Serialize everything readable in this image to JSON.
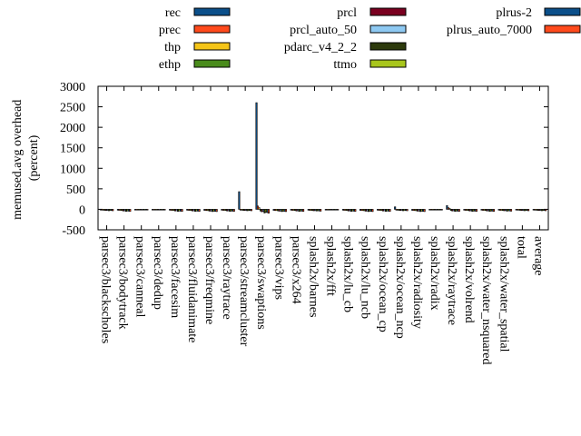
{
  "chart_data": {
    "type": "bar",
    "ylabel": "memused.avg overhead\n(percent)",
    "ylim": [
      -500,
      3000
    ],
    "yticks": [
      -500,
      0,
      500,
      1000,
      1500,
      2000,
      2500,
      3000
    ],
    "grid": false,
    "legend_position": "top",
    "categories": [
      "parsec3/blackscholes",
      "parsec3/bodytrack",
      "parsec3/canneal",
      "parsec3/dedup",
      "parsec3/facesim",
      "parsec3/fluidanimate",
      "parsec3/freqmine",
      "parsec3/raytrace",
      "parsec3/streamcluster",
      "parsec3/swaptions",
      "parsec3/vips",
      "parsec3/x264",
      "splash2x/barnes",
      "splash2x/fft",
      "splash2x/lu_cb",
      "splash2x/lu_ncb",
      "splash2x/ocean_cp",
      "splash2x/ocean_ncp",
      "splash2x/radiosity",
      "splash2x/radix",
      "splash2x/raytrace",
      "splash2x/volrend",
      "splash2x/water_nsquared",
      "splash2x/water_spatial",
      "total",
      "average"
    ],
    "series": [
      {
        "name": "rec",
        "color": "#0b4f8a",
        "values": [
          -15,
          -20,
          -10,
          -10,
          -20,
          -20,
          -25,
          -20,
          430,
          2600,
          -25,
          -20,
          -20,
          -10,
          -20,
          -25,
          -20,
          60,
          -25,
          -10,
          90,
          -20,
          -20,
          -20,
          -15,
          -15
        ]
      },
      {
        "name": "prec",
        "color": "#ff4a1c",
        "values": [
          -20,
          -25,
          -10,
          -10,
          -25,
          -25,
          -30,
          -25,
          -20,
          80,
          -30,
          -25,
          -25,
          -10,
          -25,
          -30,
          -25,
          -20,
          -30,
          -10,
          40,
          -25,
          -25,
          -25,
          -20,
          -20
        ]
      },
      {
        "name": "thp",
        "color": "#f5c518",
        "values": [
          -20,
          -25,
          -10,
          -10,
          -25,
          -25,
          -30,
          -25,
          -20,
          40,
          -30,
          -25,
          -25,
          -10,
          -25,
          -30,
          -25,
          -20,
          -30,
          -10,
          20,
          -25,
          -25,
          -25,
          -20,
          -20
        ]
      },
      {
        "name": "ethp",
        "color": "#4a8c1c",
        "values": [
          -25,
          -30,
          -10,
          -10,
          -30,
          -30,
          -35,
          -30,
          -25,
          -40,
          -35,
          -30,
          -30,
          -10,
          -30,
          -35,
          -30,
          -25,
          -35,
          -10,
          -30,
          -30,
          -30,
          -30,
          -25,
          -25
        ]
      },
      {
        "name": "prcl",
        "color": "#7a0020",
        "values": [
          -30,
          -40,
          -15,
          -15,
          -40,
          -40,
          -45,
          -40,
          -30,
          -60,
          -45,
          -40,
          -35,
          -15,
          -40,
          -45,
          -40,
          -30,
          -45,
          -15,
          -40,
          -40,
          -40,
          -35,
          -30,
          -30
        ]
      },
      {
        "name": "prcl_auto_50",
        "color": "#8ec9f2",
        "values": [
          -25,
          -35,
          -15,
          -15,
          -35,
          -35,
          -40,
          -35,
          -25,
          -50,
          -40,
          -35,
          -30,
          -15,
          -35,
          -40,
          -35,
          -25,
          -40,
          -15,
          -35,
          -35,
          -35,
          -30,
          -25,
          -25
        ]
      },
      {
        "name": "pdarc_v4_2_2",
        "color": "#2d3a0c",
        "values": [
          -35,
          -50,
          -15,
          -15,
          -50,
          -50,
          -55,
          -50,
          -35,
          -90,
          -55,
          -50,
          -40,
          -15,
          -50,
          -55,
          -50,
          -35,
          -55,
          -15,
          -50,
          -50,
          -50,
          -45,
          -35,
          -35
        ]
      },
      {
        "name": "ttmo",
        "color": "#a8c61c",
        "values": [
          -30,
          -40,
          -15,
          -15,
          -40,
          -40,
          -45,
          -40,
          -30,
          -70,
          -45,
          -40,
          -35,
          -15,
          -40,
          -45,
          -40,
          -30,
          -45,
          -15,
          -40,
          -40,
          -40,
          -35,
          -30,
          -30
        ]
      },
      {
        "name": "plrus-2",
        "color": "#0b4f8a",
        "values": [
          -30,
          -45,
          -15,
          -15,
          -45,
          -45,
          -50,
          -45,
          -30,
          -80,
          -50,
          -45,
          -40,
          -15,
          -45,
          -50,
          -45,
          -30,
          -50,
          -15,
          -45,
          -45,
          -45,
          -40,
          -30,
          -30
        ]
      },
      {
        "name": "plrus_auto_7000",
        "color": "#ff4a1c",
        "values": [
          -35,
          -50,
          -15,
          -15,
          -50,
          -50,
          -55,
          -50,
          -35,
          -95,
          -55,
          -50,
          -45,
          -15,
          -50,
          -55,
          -50,
          -35,
          -55,
          -15,
          -50,
          -50,
          -50,
          -45,
          -35,
          -35
        ]
      }
    ]
  }
}
